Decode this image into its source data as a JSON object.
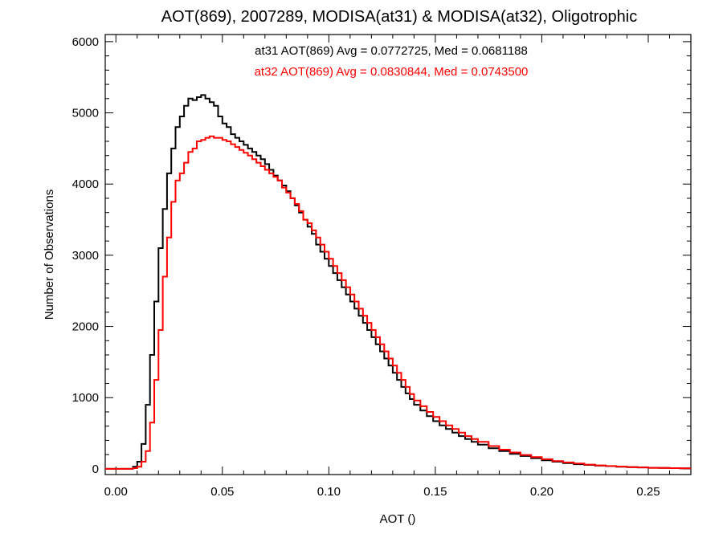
{
  "chart_data": {
    "type": "line",
    "step": true,
    "title": "AOT(869), 2007289, MODISA(at31) & MODISA(at32), Oligotrophic",
    "xlabel": "AOT ()",
    "ylabel": "Number of Observations",
    "xlim": [
      -0.005,
      0.27
    ],
    "ylim": [
      -80,
      6100
    ],
    "xticks": [
      0.0,
      0.05,
      0.1,
      0.15,
      0.2,
      0.25
    ],
    "xtick_labels": [
      "0.00",
      "0.05",
      "0.10",
      "0.15",
      "0.20",
      "0.25"
    ],
    "yticks": [
      0,
      1000,
      2000,
      3000,
      4000,
      5000,
      6000
    ],
    "ytick_labels": [
      "0",
      "1000",
      "2000",
      "3000",
      "4000",
      "5000",
      "6000"
    ],
    "grid": false,
    "legend_position": "top-center",
    "series": [
      {
        "name": "at31",
        "color": "#000000",
        "legend_text": "at31 AOT(869) Avg = 0.0772725, Med = 0.0681188",
        "x": [
          -0.005,
          0.0,
          0.005,
          0.008,
          0.01,
          0.012,
          0.014,
          0.016,
          0.018,
          0.02,
          0.022,
          0.024,
          0.026,
          0.028,
          0.03,
          0.032,
          0.034,
          0.036,
          0.038,
          0.04,
          0.042,
          0.044,
          0.046,
          0.048,
          0.05,
          0.052,
          0.054,
          0.056,
          0.058,
          0.06,
          0.062,
          0.064,
          0.066,
          0.068,
          0.07,
          0.072,
          0.074,
          0.076,
          0.078,
          0.08,
          0.082,
          0.084,
          0.086,
          0.088,
          0.09,
          0.092,
          0.094,
          0.096,
          0.098,
          0.1,
          0.102,
          0.104,
          0.106,
          0.108,
          0.11,
          0.112,
          0.114,
          0.116,
          0.118,
          0.12,
          0.122,
          0.124,
          0.126,
          0.128,
          0.13,
          0.132,
          0.134,
          0.136,
          0.138,
          0.14,
          0.143,
          0.146,
          0.149,
          0.152,
          0.155,
          0.158,
          0.161,
          0.164,
          0.167,
          0.17,
          0.175,
          0.18,
          0.185,
          0.19,
          0.195,
          0.2,
          0.205,
          0.21,
          0.215,
          0.22,
          0.225,
          0.23,
          0.235,
          0.24,
          0.245,
          0.25,
          0.255,
          0.26,
          0.265,
          0.27
        ],
        "y": [
          0,
          0,
          0,
          30,
          100,
          350,
          900,
          1600,
          2350,
          3100,
          3650,
          4150,
          4500,
          4800,
          4950,
          5100,
          5200,
          5180,
          5220,
          5250,
          5200,
          5150,
          5100,
          4950,
          4850,
          4800,
          4700,
          4650,
          4600,
          4550,
          4500,
          4450,
          4400,
          4350,
          4280,
          4200,
          4120,
          4050,
          3980,
          3900,
          3800,
          3700,
          3600,
          3500,
          3400,
          3300,
          3150,
          3050,
          2950,
          2850,
          2750,
          2650,
          2550,
          2450,
          2350,
          2250,
          2150,
          2050,
          1950,
          1850,
          1750,
          1650,
          1550,
          1450,
          1350,
          1250,
          1150,
          1060,
          980,
          900,
          820,
          740,
          670,
          610,
          560,
          510,
          460,
          420,
          380,
          340,
          290,
          250,
          210,
          180,
          150,
          120,
          100,
          80,
          65,
          55,
          45,
          38,
          30,
          25,
          20,
          15,
          12,
          10,
          8,
          8
        ]
      },
      {
        "name": "at32",
        "color": "#ff0000",
        "legend_text": "at32 AOT(869) Avg = 0.0830844, Med = 0.0743500",
        "x": [
          -0.005,
          0.0,
          0.005,
          0.008,
          0.01,
          0.012,
          0.014,
          0.016,
          0.018,
          0.02,
          0.022,
          0.024,
          0.026,
          0.028,
          0.03,
          0.032,
          0.034,
          0.036,
          0.038,
          0.04,
          0.042,
          0.044,
          0.046,
          0.048,
          0.05,
          0.052,
          0.054,
          0.056,
          0.058,
          0.06,
          0.062,
          0.064,
          0.066,
          0.068,
          0.07,
          0.072,
          0.074,
          0.076,
          0.078,
          0.08,
          0.082,
          0.084,
          0.086,
          0.088,
          0.09,
          0.092,
          0.094,
          0.096,
          0.098,
          0.1,
          0.102,
          0.104,
          0.106,
          0.108,
          0.11,
          0.112,
          0.114,
          0.116,
          0.118,
          0.12,
          0.122,
          0.124,
          0.126,
          0.128,
          0.13,
          0.132,
          0.134,
          0.136,
          0.138,
          0.14,
          0.143,
          0.146,
          0.149,
          0.152,
          0.155,
          0.158,
          0.161,
          0.164,
          0.167,
          0.17,
          0.175,
          0.18,
          0.185,
          0.19,
          0.195,
          0.2,
          0.205,
          0.21,
          0.215,
          0.22,
          0.225,
          0.23,
          0.235,
          0.24,
          0.245,
          0.25,
          0.255,
          0.26,
          0.265,
          0.27
        ],
        "y": [
          0,
          0,
          0,
          10,
          30,
          100,
          250,
          650,
          1250,
          1950,
          2700,
          3250,
          3750,
          4050,
          4150,
          4300,
          4450,
          4500,
          4600,
          4620,
          4650,
          4670,
          4650,
          4650,
          4620,
          4600,
          4560,
          4520,
          4480,
          4440,
          4400,
          4350,
          4300,
          4250,
          4200,
          4150,
          4100,
          4050,
          3950,
          3880,
          3800,
          3720,
          3620,
          3500,
          3450,
          3350,
          3250,
          3150,
          3050,
          2950,
          2850,
          2750,
          2650,
          2550,
          2450,
          2350,
          2250,
          2150,
          2050,
          1950,
          1850,
          1750,
          1650,
          1550,
          1450,
          1350,
          1250,
          1150,
          1050,
          960,
          880,
          800,
          730,
          670,
          610,
          560,
          510,
          460,
          420,
          380,
          320,
          270,
          230,
          195,
          165,
          135,
          110,
          90,
          75,
          60,
          48,
          40,
          32,
          25,
          20,
          15,
          12,
          10,
          8,
          8
        ]
      }
    ]
  }
}
